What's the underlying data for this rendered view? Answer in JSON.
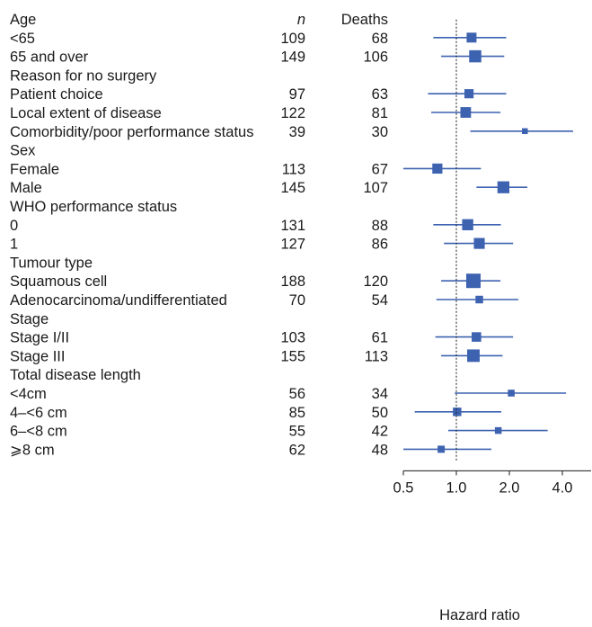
{
  "chart_data": {
    "type": "forest",
    "columns": {
      "n": "n",
      "deaths": "Deaths"
    },
    "xlabel": "Hazard ratio",
    "x_scale": "log2",
    "xlim": [
      0.5,
      4.6
    ],
    "x_ticks": [
      "0.5",
      "1.0",
      "2.0",
      "4.0"
    ],
    "reference_line": 1.0,
    "marker_color": "#3d62b0",
    "groups": [
      {
        "heading": "Age",
        "rows": [
          {
            "label": "<65",
            "n": "109",
            "deaths": "68",
            "hr": 1.22,
            "lo": 0.74,
            "hi": 1.92
          },
          {
            "label": "65 and over",
            "n": "149",
            "deaths": "106",
            "hr": 1.28,
            "lo": 0.82,
            "hi": 1.87
          }
        ]
      },
      {
        "heading": "Reason for no surgery",
        "rows": [
          {
            "label": "Patient choice",
            "n": "97",
            "deaths": "63",
            "hr": 1.18,
            "lo": 0.69,
            "hi": 1.92
          },
          {
            "label": "Local extent of disease",
            "n": "122",
            "deaths": "81",
            "hr": 1.13,
            "lo": 0.72,
            "hi": 1.78
          },
          {
            "label": "Comorbidity/poor performance status",
            "n": "39",
            "deaths": "30",
            "hr": 2.45,
            "lo": 1.2,
            "hi": 4.6
          }
        ]
      },
      {
        "heading": "Sex",
        "rows": [
          {
            "label": "Female",
            "n": "113",
            "deaths": "67",
            "hr": 0.78,
            "lo": 0.5,
            "hi": 1.38
          },
          {
            "label": "Male",
            "n": "145",
            "deaths": "107",
            "hr": 1.85,
            "lo": 1.3,
            "hi": 2.53
          }
        ]
      },
      {
        "heading": "WHO performance status",
        "rows": [
          {
            "label": "0",
            "n": "131",
            "deaths": "88",
            "hr": 1.16,
            "lo": 0.74,
            "hi": 1.79
          },
          {
            "label": "1",
            "n": "127",
            "deaths": "86",
            "hr": 1.35,
            "lo": 0.85,
            "hi": 2.1
          }
        ]
      },
      {
        "heading": "Tumour type",
        "rows": [
          {
            "label": "Squamous cell",
            "n": "188",
            "deaths": "120",
            "hr": 1.25,
            "lo": 0.82,
            "hi": 1.78
          },
          {
            "label": "Adenocarcinoma/undifferentiated",
            "n": "70",
            "deaths": "54",
            "hr": 1.35,
            "lo": 0.77,
            "hi": 2.25
          }
        ]
      },
      {
        "heading": "Stage",
        "rows": [
          {
            "label": "Stage I/II",
            "n": "103",
            "deaths": "61",
            "hr": 1.3,
            "lo": 0.76,
            "hi": 2.1
          },
          {
            "label": "Stage III",
            "n": "155",
            "deaths": "113",
            "hr": 1.25,
            "lo": 0.82,
            "hi": 1.83
          }
        ]
      },
      {
        "heading": "Total disease length",
        "rows": [
          {
            "label": "<4cm",
            "n": "56",
            "deaths": "34",
            "hr": 2.05,
            "lo": 0.98,
            "hi": 4.2
          },
          {
            "label": "4–<6 cm",
            "n": "85",
            "deaths": "50",
            "hr": 1.01,
            "lo": 0.58,
            "hi": 1.8
          },
          {
            "label": "6–<8 cm",
            "n": "55",
            "deaths": "42",
            "hr": 1.73,
            "lo": 0.9,
            "hi": 3.3
          },
          {
            "label": "⩾8 cm",
            "n": "62",
            "deaths": "48",
            "hr": 0.82,
            "lo": 0.5,
            "hi": 1.58
          }
        ]
      }
    ]
  }
}
